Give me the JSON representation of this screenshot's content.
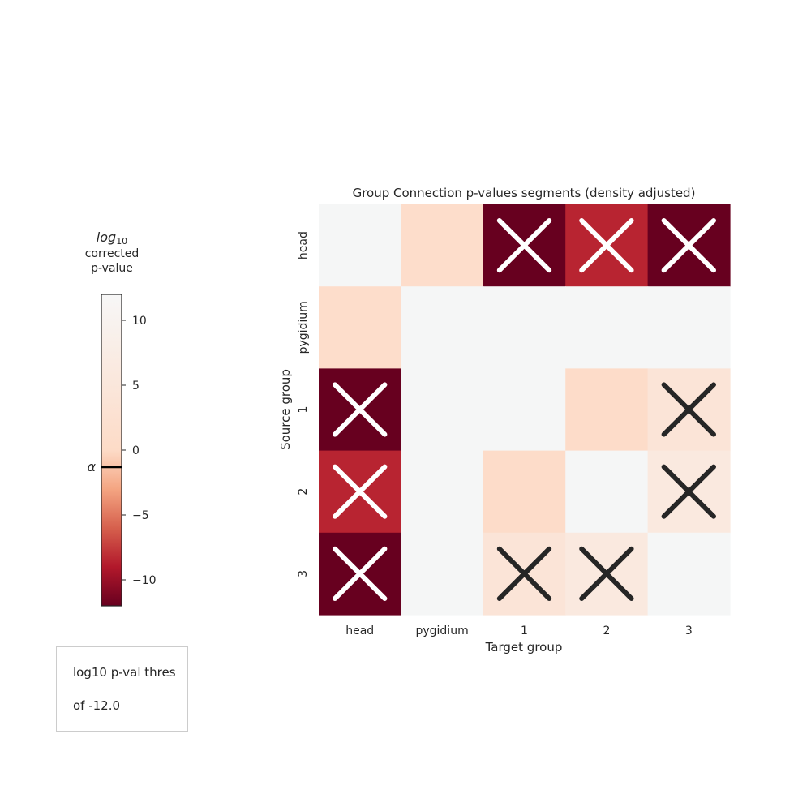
{
  "chart_data": {
    "type": "heatmap",
    "title": "Group Connection p-values segments (density adjusted)",
    "xlabel": "Target group",
    "ylabel": "Source group",
    "x_categories": [
      "head",
      "pygidium",
      "1",
      "2",
      "3"
    ],
    "y_categories": [
      "head",
      "pygidium",
      "1",
      "2",
      "3"
    ],
    "values": [
      [
        0,
        1,
        -12,
        -8.5,
        -12
      ],
      [
        1,
        0,
        0,
        0,
        0
      ],
      [
        -12,
        0,
        0,
        0.5,
        4
      ],
      [
        -8.5,
        0,
        0.5,
        0,
        6
      ],
      [
        -12,
        0,
        4,
        6,
        0
      ]
    ],
    "significant_marks": [
      [
        false,
        false,
        true,
        true,
        true
      ],
      [
        false,
        false,
        false,
        false,
        false
      ],
      [
        true,
        false,
        false,
        false,
        true
      ],
      [
        true,
        false,
        false,
        false,
        true
      ],
      [
        true,
        false,
        true,
        true,
        false
      ]
    ],
    "colormap": "RdBu_r (reds)",
    "vlim": [
      -12,
      12
    ],
    "colorbar": {
      "title_log": "log",
      "title_sub": "10",
      "title_line2": "corrected",
      "title_line3": "p-value",
      "ticks": [
        10,
        5,
        0,
        -5,
        -10
      ],
      "tick_labels": [
        "10",
        "5",
        "0",
        "−5",
        "−10"
      ],
      "alpha_label": "α",
      "alpha_value": -1.3
    },
    "grid": false,
    "legend_placement": "bottom-left"
  },
  "legend_text": {
    "line1": "log10 p-val thres",
    "line2": "of -12.0"
  },
  "colors": {
    "cell_neutral": "#f5f6f6",
    "mark_dark": "#262626",
    "mark_light": "#ffffff",
    "text": "#262626"
  }
}
